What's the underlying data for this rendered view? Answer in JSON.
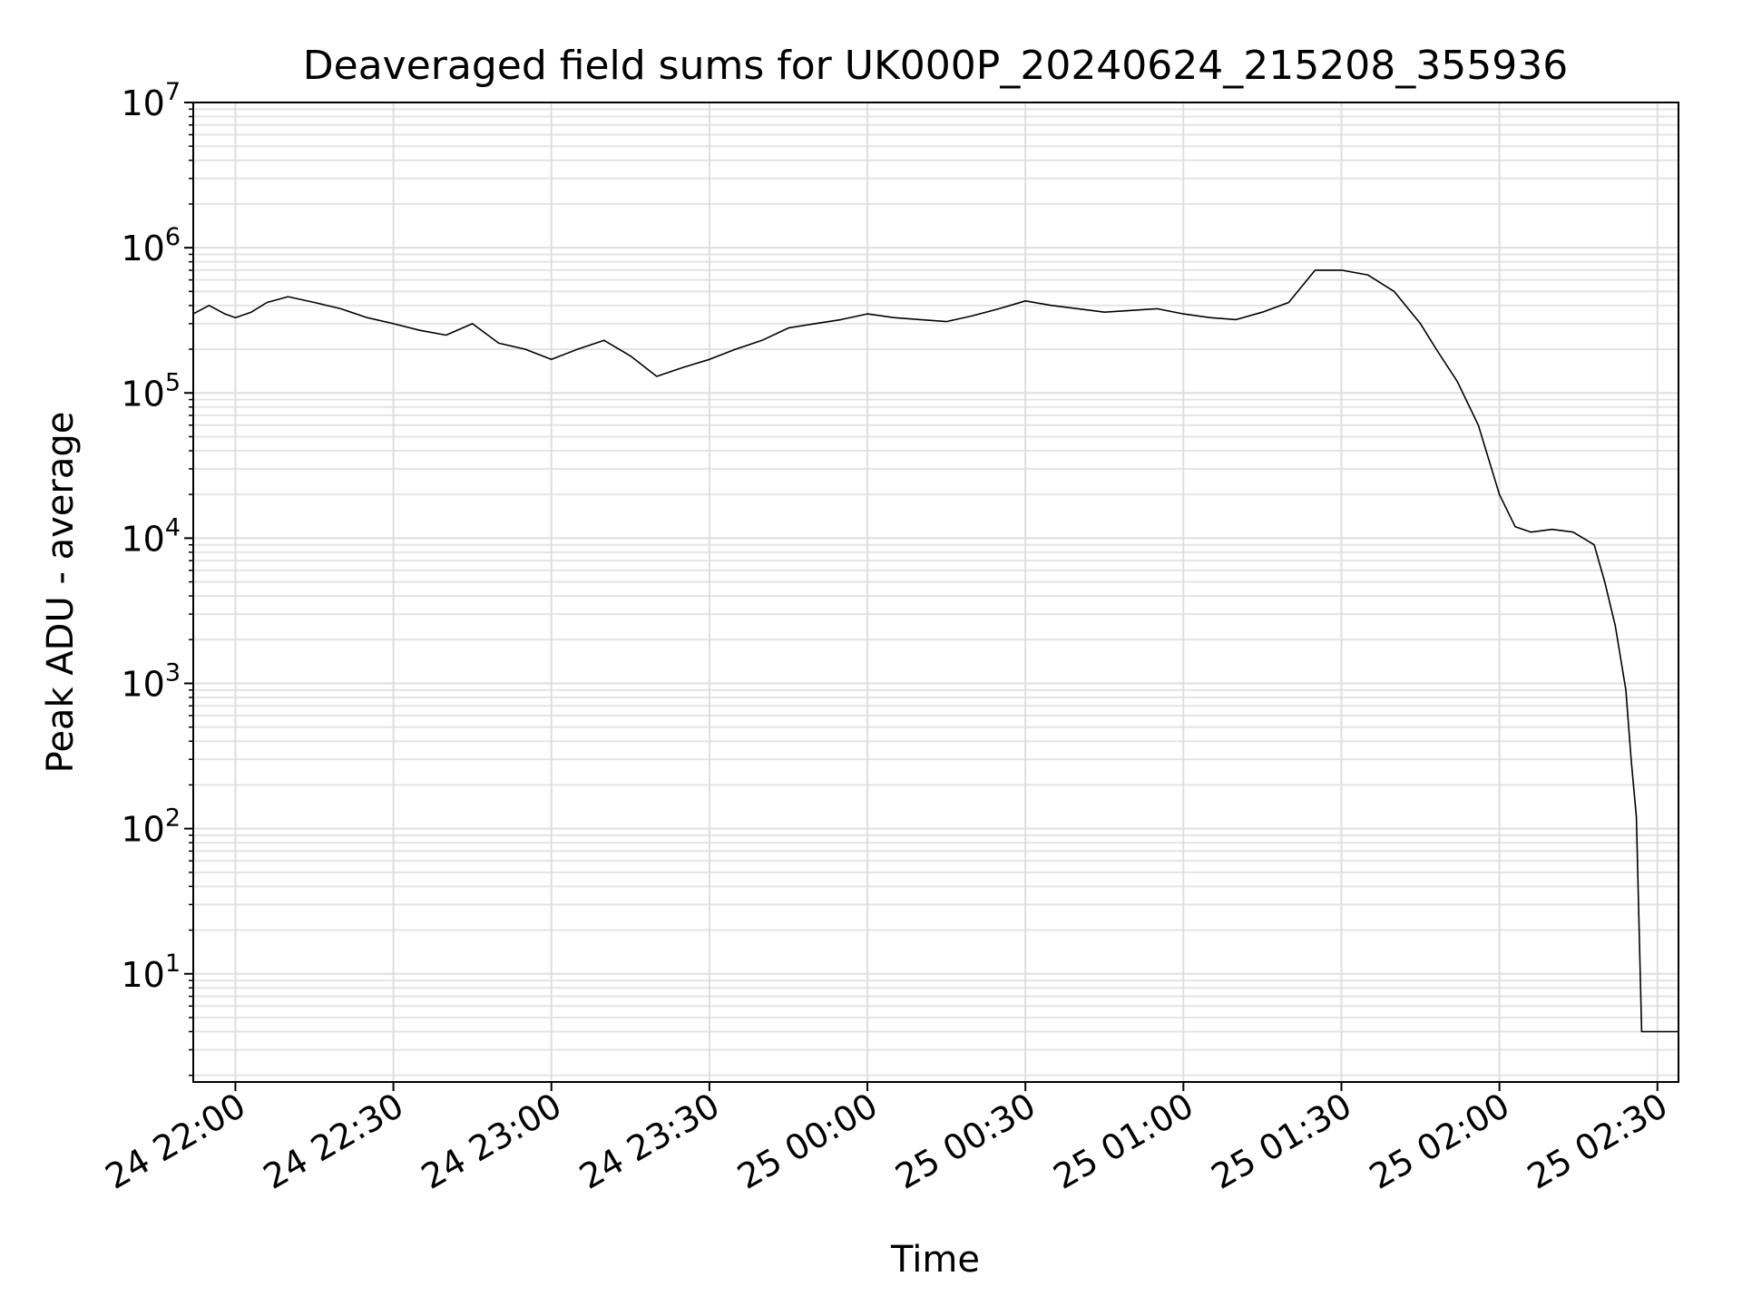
{
  "chart_data": {
    "type": "line",
    "title": "Deaveraged field sums for UK000P_20240624_215208_355936",
    "xlabel": "Time",
    "ylabel": "Peak ADU - average",
    "xscale": "time",
    "yscale": "log",
    "xlim": [
      "2024-06-24 21:52",
      "2024-06-25 02:34"
    ],
    "ylim": [
      1.8,
      10000000
    ],
    "grid": true,
    "legend": "none",
    "line_color": "#000000",
    "x_ticks": [
      {
        "value": "2024-06-24 22:00",
        "label": "24 22:00"
      },
      {
        "value": "2024-06-24 22:30",
        "label": "24 22:30"
      },
      {
        "value": "2024-06-24 23:00",
        "label": "24 23:00"
      },
      {
        "value": "2024-06-24 23:30",
        "label": "24 23:30"
      },
      {
        "value": "2024-06-25 00:00",
        "label": "25 00:00"
      },
      {
        "value": "2024-06-25 00:30",
        "label": "25 00:30"
      },
      {
        "value": "2024-06-25 01:00",
        "label": "25 01:00"
      },
      {
        "value": "2024-06-25 01:30",
        "label": "25 01:30"
      },
      {
        "value": "2024-06-25 02:00",
        "label": "25 02:00"
      },
      {
        "value": "2024-06-25 02:30",
        "label": "25 02:30"
      }
    ],
    "y_ticks": [
      {
        "value": 10,
        "base": "10",
        "exp": "1"
      },
      {
        "value": 100,
        "base": "10",
        "exp": "2"
      },
      {
        "value": 1000,
        "base": "10",
        "exp": "3"
      },
      {
        "value": 10000,
        "base": "10",
        "exp": "4"
      },
      {
        "value": 100000,
        "base": "10",
        "exp": "5"
      },
      {
        "value": 1000000,
        "base": "10",
        "exp": "6"
      },
      {
        "value": 10000000,
        "base": "10",
        "exp": "7"
      }
    ],
    "series": [
      {
        "x": [
          "2024-06-24 21:52",
          "2024-06-24 21:55",
          "2024-06-24 21:58",
          "2024-06-24 22:00",
          "2024-06-24 22:03",
          "2024-06-24 22:06",
          "2024-06-24 22:10",
          "2024-06-24 22:15",
          "2024-06-24 22:20",
          "2024-06-24 22:25",
          "2024-06-24 22:30",
          "2024-06-24 22:35",
          "2024-06-24 22:40",
          "2024-06-24 22:45",
          "2024-06-24 22:50",
          "2024-06-24 22:55",
          "2024-06-24 23:00",
          "2024-06-24 23:05",
          "2024-06-24 23:10",
          "2024-06-24 23:15",
          "2024-06-24 23:20",
          "2024-06-24 23:25",
          "2024-06-24 23:30",
          "2024-06-24 23:35",
          "2024-06-24 23:40",
          "2024-06-24 23:45",
          "2024-06-24 23:50",
          "2024-06-24 23:55",
          "2024-06-25 00:00",
          "2024-06-25 00:05",
          "2024-06-25 00:10",
          "2024-06-25 00:15",
          "2024-06-25 00:20",
          "2024-06-25 00:25",
          "2024-06-25 00:30",
          "2024-06-25 00:35",
          "2024-06-25 00:40",
          "2024-06-25 00:45",
          "2024-06-25 00:50",
          "2024-06-25 00:55",
          "2024-06-25 01:00",
          "2024-06-25 01:05",
          "2024-06-25 01:10",
          "2024-06-25 01:15",
          "2024-06-25 01:20",
          "2024-06-25 01:25",
          "2024-06-25 01:30",
          "2024-06-25 01:35",
          "2024-06-25 01:40",
          "2024-06-25 01:45",
          "2024-06-25 01:48",
          "2024-06-25 01:52",
          "2024-06-25 01:56",
          "2024-06-25 02:00",
          "2024-06-25 02:03",
          "2024-06-25 02:06",
          "2024-06-25 02:10",
          "2024-06-25 02:14",
          "2024-06-25 02:18",
          "2024-06-25 02:20",
          "2024-06-25 02:22",
          "2024-06-25 02:24",
          "2024-06-25 02:25",
          "2024-06-25 02:26",
          "2024-06-25 02:27",
          "2024-06-25 02:28",
          "2024-06-25 02:29",
          "2024-06-25 02:30",
          "2024-06-25 02:32",
          "2024-06-25 02:34"
        ],
        "y": [
          350000,
          400000,
          350000,
          330000,
          360000,
          420000,
          460000,
          420000,
          380000,
          330000,
          300000,
          270000,
          250000,
          300000,
          220000,
          200000,
          170000,
          200000,
          230000,
          180000,
          130000,
          150000,
          170000,
          200000,
          230000,
          280000,
          300000,
          320000,
          350000,
          330000,
          320000,
          310000,
          340000,
          380000,
          430000,
          400000,
          380000,
          360000,
          370000,
          380000,
          350000,
          330000,
          320000,
          360000,
          420000,
          700000,
          700000,
          650000,
          500000,
          300000,
          200000,
          120000,
          60000,
          20000,
          12000,
          11000,
          11500,
          11000,
          9000,
          5000,
          2500,
          900,
          300,
          120,
          4,
          4,
          4,
          4,
          4,
          4
        ]
      }
    ]
  }
}
